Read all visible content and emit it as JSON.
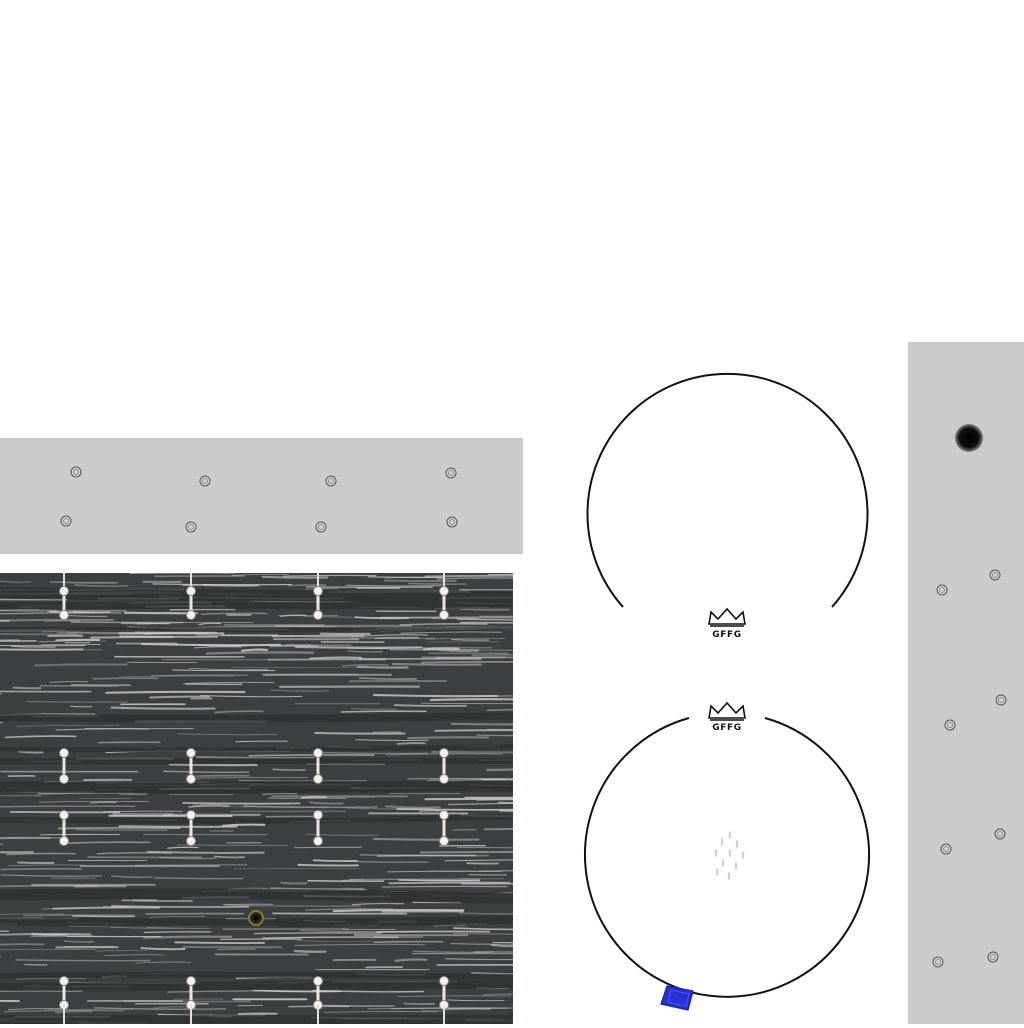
{
  "texture": {
    "top_strip": {
      "color": "#cbcbcb",
      "screw_icon": "screw-hole-icon"
    },
    "right_strip": {
      "color": "#cbcbcb",
      "screw_icon": "screw-hole-icon",
      "vent_icon": "air-vent-icon"
    },
    "shell": {
      "base_color": "#3c4042",
      "grain_color": "#c8c8c8",
      "hardware_icon": "tension-lug-icon",
      "vent_icon": "air-vent-icon"
    }
  },
  "drum_heads": {
    "batter": {
      "logo_icon": "crown-logo-icon",
      "brand": "GFFG",
      "stroke_color": "#111111"
    },
    "resonant": {
      "logo_icon": "crown-logo-icon",
      "brand": "GFFG",
      "stroke_color": "#111111",
      "center_mark_icon": "dot-cluster-icon",
      "patch_icon": "blue-patch-icon",
      "patch_color": "#2a2fd6"
    }
  }
}
